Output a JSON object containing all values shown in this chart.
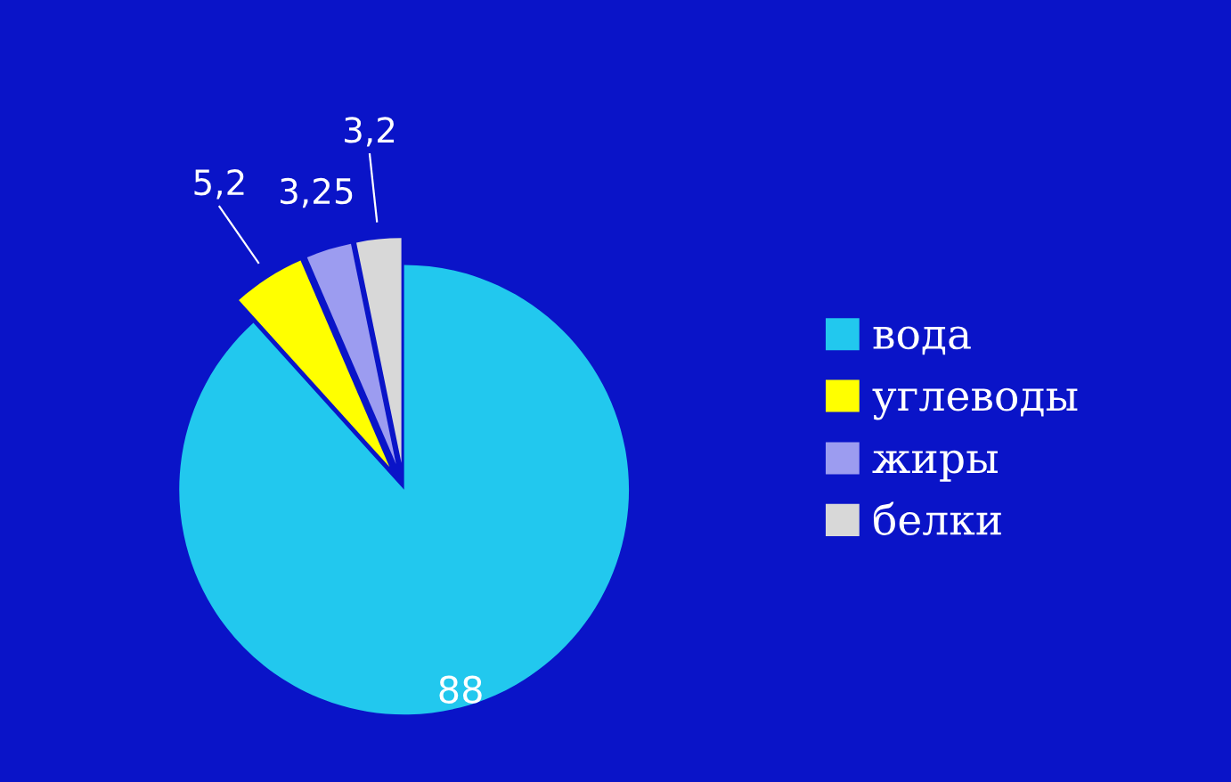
{
  "chart_data": {
    "type": "pie",
    "categories": [
      "вода",
      "углеводы",
      "жиры",
      "белки"
    ],
    "values": [
      88,
      5.2,
      3.25,
      3.2
    ],
    "colors": [
      "#22c8ee",
      "#ffff00",
      "#9c9cf0",
      "#d8d8d8"
    ],
    "value_labels": [
      "88",
      "5,2",
      "3,25",
      "3,2"
    ],
    "legend": "right"
  }
}
